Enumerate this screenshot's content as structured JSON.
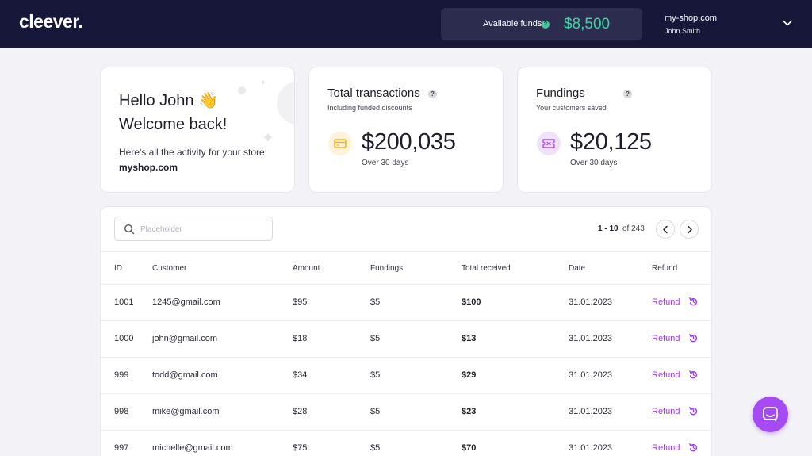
{
  "header": {
    "logo": "cleever.",
    "funds_label": "Available funds",
    "funds_help": "?",
    "funds_value": "$8,500",
    "shop_name": "my-shop.com",
    "user_name": "John Smith"
  },
  "welcome": {
    "line1": "Hello John 👋",
    "line2": "Welcome back!",
    "line3": "Here's all the activity for your store,",
    "store": "myshop.com"
  },
  "transactions": {
    "title": "Total transactions",
    "help": "?",
    "subtitle": "Including funded discounts",
    "value": "$200,035",
    "period": "Over 30 days"
  },
  "fundings": {
    "title": "Fundings",
    "help": "?",
    "subtitle": "Your customers saved",
    "value": "$20,125",
    "period": "Over 30 days"
  },
  "table": {
    "search_placeholder": "Placeholder",
    "pager_range": "1 - 10",
    "pager_of": "of 243",
    "columns": {
      "id": "ID",
      "customer": "Customer",
      "amount": "Amount",
      "fundings": "Fundings",
      "total": "Total received",
      "date": "Date",
      "refund": "Refund"
    },
    "rows": [
      {
        "id": "1001",
        "customer": "1245@gmail.com",
        "amount": "$95",
        "fundings": "$5",
        "total": "$100",
        "date": "31.01.2023",
        "refund": "Refund"
      },
      {
        "id": "1000",
        "customer": "john@gmail.com",
        "amount": "$18",
        "fundings": "$5",
        "total": "$13",
        "date": "31.01.2023",
        "refund": "Refund"
      },
      {
        "id": "999",
        "customer": "todd@gmail.com",
        "amount": "$34",
        "fundings": "$5",
        "total": "$29",
        "date": "31.01.2023",
        "refund": "Refund"
      },
      {
        "id": "998",
        "customer": "mike@gmail.com",
        "amount": "$28",
        "fundings": "$5",
        "total": "$23",
        "date": "31.01.2023",
        "refund": "Refund"
      },
      {
        "id": "997",
        "customer": "michelle@gmail.com",
        "amount": "$75",
        "fundings": "$5",
        "total": "$70",
        "date": "31.01.2023",
        "refund": "Refund"
      }
    ]
  },
  "colors": {
    "header_bg": "#17173a",
    "accent_green": "#3fd4a4",
    "accent_purple": "#9b3fe0",
    "chat_button": "#a64bf4"
  },
  "icons": {
    "funds_help": "question-icon",
    "account_menu": "chevron-down-icon",
    "transactions": "card-icon",
    "fundings": "ticket-icon",
    "search": "search-icon",
    "prev": "chevron-left-icon",
    "next": "chevron-right-icon",
    "refund": "refund-icon",
    "chat": "chat-icon"
  }
}
